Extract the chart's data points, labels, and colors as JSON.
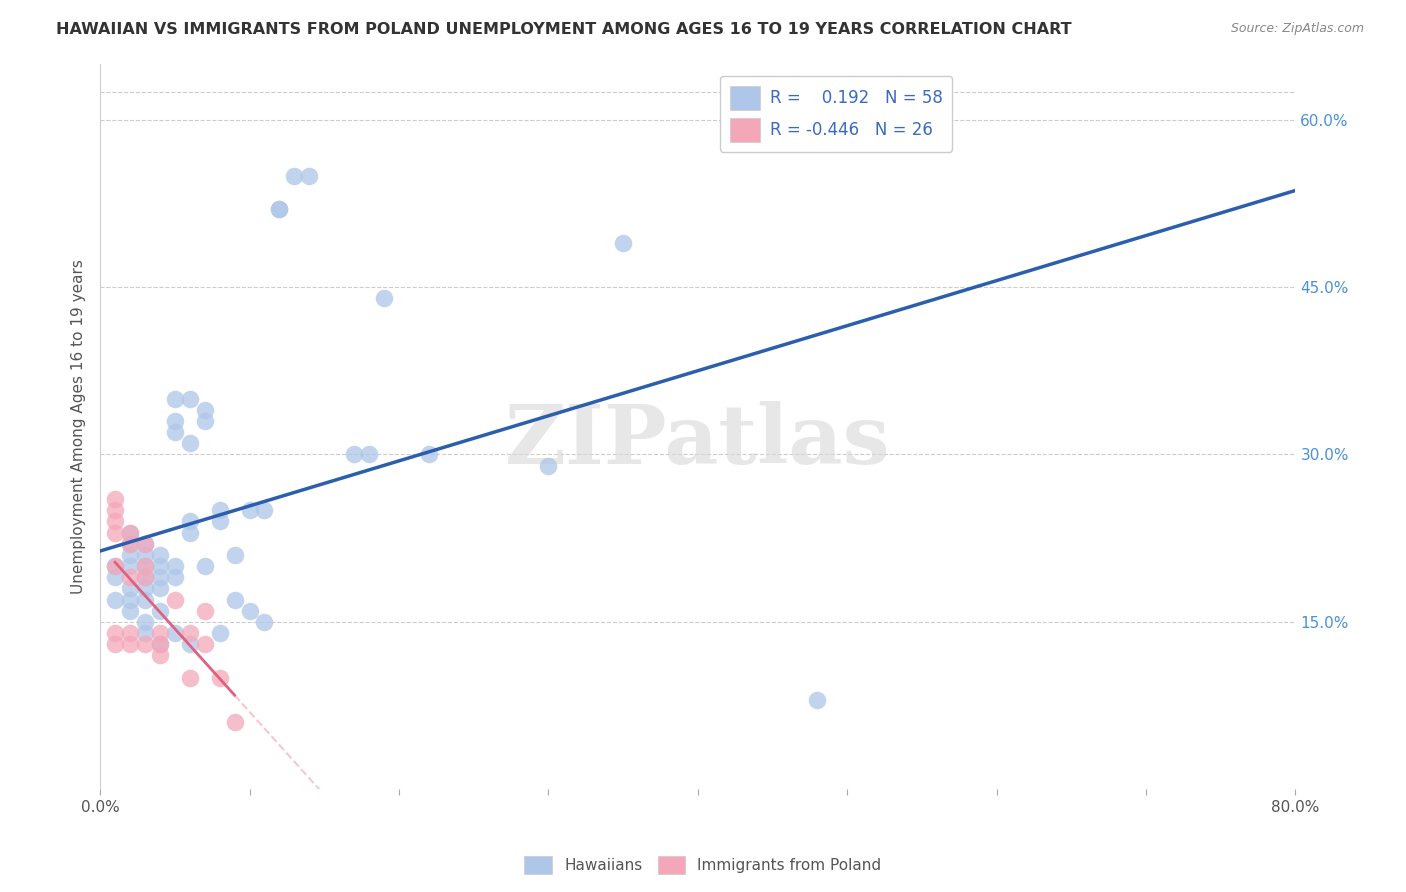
{
  "title": "HAWAIIAN VS IMMIGRANTS FROM POLAND UNEMPLOYMENT AMONG AGES 16 TO 19 YEARS CORRELATION CHART",
  "source": "Source: ZipAtlas.com",
  "ylabel": "Unemployment Among Ages 16 to 19 years",
  "xlim": [
    0.0,
    0.8
  ],
  "ylim": [
    0.0,
    0.65
  ],
  "xticks": [
    0.0,
    0.1,
    0.2,
    0.3,
    0.4,
    0.5,
    0.6,
    0.7,
    0.8
  ],
  "ytick_positions": [
    0.15,
    0.3,
    0.45,
    0.6
  ],
  "ytick_labels": [
    "15.0%",
    "30.0%",
    "45.0%",
    "60.0%"
  ],
  "hawaiians_x": [
    0.01,
    0.01,
    0.01,
    0.02,
    0.02,
    0.02,
    0.02,
    0.02,
    0.02,
    0.02,
    0.03,
    0.03,
    0.03,
    0.03,
    0.03,
    0.03,
    0.03,
    0.03,
    0.04,
    0.04,
    0.04,
    0.04,
    0.04,
    0.04,
    0.05,
    0.05,
    0.05,
    0.05,
    0.05,
    0.05,
    0.06,
    0.06,
    0.06,
    0.06,
    0.06,
    0.07,
    0.07,
    0.07,
    0.08,
    0.08,
    0.08,
    0.09,
    0.09,
    0.1,
    0.1,
    0.11,
    0.11,
    0.12,
    0.12,
    0.13,
    0.14,
    0.17,
    0.18,
    0.19,
    0.22,
    0.3,
    0.35,
    0.48
  ],
  "hawaiians_y": [
    0.2,
    0.19,
    0.17,
    0.23,
    0.22,
    0.21,
    0.2,
    0.18,
    0.17,
    0.16,
    0.22,
    0.21,
    0.2,
    0.19,
    0.18,
    0.17,
    0.15,
    0.14,
    0.21,
    0.2,
    0.19,
    0.18,
    0.16,
    0.13,
    0.35,
    0.33,
    0.32,
    0.2,
    0.19,
    0.14,
    0.35,
    0.31,
    0.24,
    0.23,
    0.13,
    0.34,
    0.33,
    0.2,
    0.25,
    0.24,
    0.14,
    0.21,
    0.17,
    0.25,
    0.16,
    0.25,
    0.15,
    0.52,
    0.52,
    0.55,
    0.55,
    0.3,
    0.3,
    0.44,
    0.3,
    0.29,
    0.49,
    0.08
  ],
  "poland_x": [
    0.01,
    0.01,
    0.01,
    0.01,
    0.01,
    0.01,
    0.01,
    0.02,
    0.02,
    0.02,
    0.02,
    0.02,
    0.03,
    0.03,
    0.03,
    0.03,
    0.04,
    0.04,
    0.04,
    0.05,
    0.06,
    0.06,
    0.07,
    0.07,
    0.08,
    0.09
  ],
  "poland_y": [
    0.26,
    0.25,
    0.24,
    0.23,
    0.2,
    0.14,
    0.13,
    0.23,
    0.22,
    0.19,
    0.14,
    0.13,
    0.22,
    0.2,
    0.19,
    0.13,
    0.14,
    0.13,
    0.12,
    0.17,
    0.14,
    0.1,
    0.16,
    0.13,
    0.1,
    0.06
  ],
  "hawaiians_color": "#aec6e8",
  "poland_color": "#f4a7b9",
  "hawaiians_line_color": "#2b5fad",
  "poland_line_color": "#e06080",
  "hawaii_R": "0.192",
  "hawaii_N": "58",
  "poland_R": "-0.446",
  "poland_N": "26",
  "watermark": "ZIPatlas",
  "background_color": "#ffffff"
}
